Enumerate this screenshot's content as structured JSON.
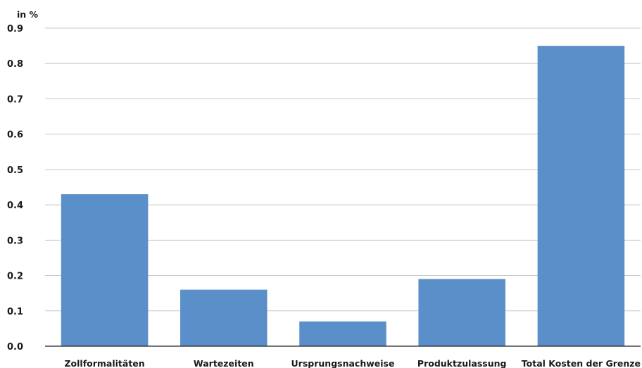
{
  "chart_data": {
    "type": "bar",
    "title": "",
    "ylabel": "in %",
    "xlabel": "",
    "categories": [
      "Zollformalitäten",
      "Wartezeiten",
      "Ursprungsnachweise",
      "Produktzulassung",
      "Total Kosten der Grenze"
    ],
    "values": [
      0.43,
      0.16,
      0.07,
      0.19,
      0.85
    ],
    "ylim": [
      0,
      0.9
    ],
    "yticks": [
      "0.0",
      "0.1",
      "0.2",
      "0.3",
      "0.4",
      "0.5",
      "0.6",
      "0.7",
      "0.8",
      "0.9"
    ],
    "grid": true,
    "legend": "none",
    "bar_color": "#5b8fc9"
  }
}
